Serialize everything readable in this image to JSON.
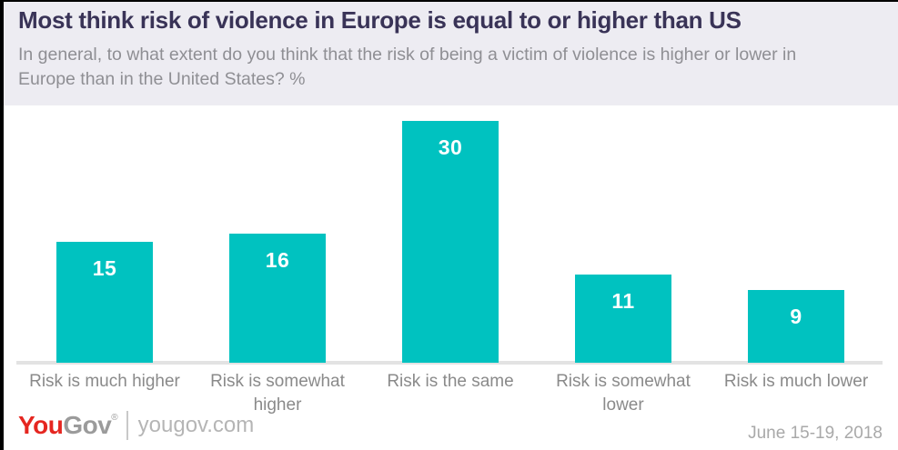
{
  "header": {
    "title": "Most think risk of violence in Europe is equal to or higher than US",
    "subtitle": "In general, to what extent do you think that the risk of being a victim of violence is higher or lower in Europe than in the United States? %"
  },
  "chart_data": {
    "type": "bar",
    "title": "Most think risk of violence in Europe is equal to or higher than US",
    "categories": [
      "Risk is much higher",
      "Risk is somewhat higher",
      "Risk is the same",
      "Risk is somewhat lower",
      "Risk is much lower"
    ],
    "values": [
      15,
      16,
      30,
      11,
      9
    ],
    "unit": "%",
    "xlabel": "",
    "ylabel": "",
    "ylim": [
      0,
      32
    ],
    "grid": false,
    "legend": false,
    "value_labels_shown": true,
    "bar_color": "#00c2c0"
  },
  "footer": {
    "logo_you": "You",
    "logo_gov": "Gov",
    "registered_mark": "®",
    "website": "yougov.com",
    "date": "June 15-19, 2018"
  },
  "colors": {
    "header_bg": "#edecf2",
    "title": "#393357",
    "subtitle": "#8f8f94",
    "bar": "#00c2c0",
    "axis_line": "#e3e3e3",
    "category_label": "#8a8a8a",
    "logo_red": "#e52620",
    "logo_gray": "#9b9b9b",
    "date_gray": "#a9a9a9"
  }
}
